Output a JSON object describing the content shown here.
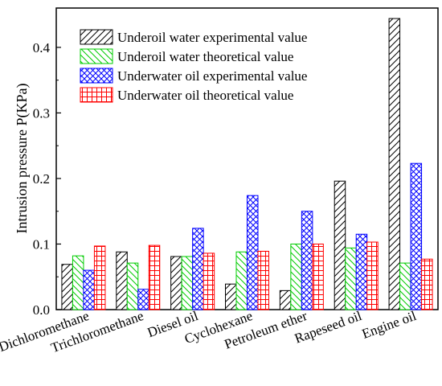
{
  "chart_data": {
    "type": "bar",
    "title": "",
    "xlabel": "",
    "ylabel": "Intrusion pressure P(KPa)",
    "ylim": [
      0,
      0.46
    ],
    "yticks": [
      "0.0",
      "0.1",
      "0.2",
      "0.3",
      "0.4"
    ],
    "categories": [
      "Dichloromethane",
      "Trichloromethane",
      "Diesel oil",
      "Cyclohexane",
      "Petroleum ether",
      "Rapeseed oil",
      "Engine oil"
    ],
    "series": [
      {
        "name": "Underoil water experimental value",
        "color": "#000000",
        "pattern": "diagonal-forward",
        "values": [
          0.069,
          0.088,
          0.081,
          0.039,
          0.029,
          0.196,
          0.444
        ]
      },
      {
        "name": "Underoil water theoretical value",
        "color": "#00cc00",
        "pattern": "diagonal-backward",
        "values": [
          0.082,
          0.071,
          0.081,
          0.088,
          0.1,
          0.094,
          0.071
        ]
      },
      {
        "name": "Underwater oil experimental value",
        "color": "#0000ff",
        "pattern": "crosshatch",
        "values": [
          0.06,
          0.031,
          0.124,
          0.174,
          0.15,
          0.115,
          0.223
        ]
      },
      {
        "name": "Underwater oil theoretical value",
        "color": "#ff0000",
        "pattern": "grid",
        "values": [
          0.097,
          0.098,
          0.086,
          0.089,
          0.1,
          0.103,
          0.077
        ]
      }
    ],
    "grid": false,
    "legend_position": "top-left"
  }
}
